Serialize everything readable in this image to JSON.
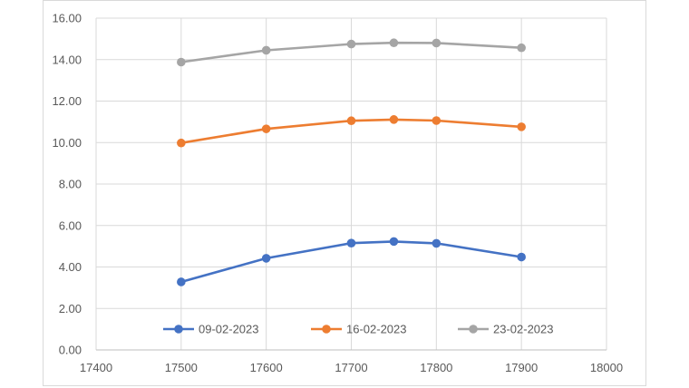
{
  "chart_data": {
    "type": "line",
    "title": "",
    "xlabel": "",
    "ylabel": "",
    "xlim": [
      17400,
      18000
    ],
    "ylim": [
      0,
      16
    ],
    "x_ticks": [
      17400,
      17500,
      17600,
      17700,
      17800,
      17900,
      18000
    ],
    "x_tick_labels": [
      "17400",
      "17500",
      "17600",
      "17700",
      "17800",
      "17900",
      "18000"
    ],
    "y_ticks": [
      0,
      2,
      4,
      6,
      8,
      10,
      12,
      14,
      16
    ],
    "y_tick_labels": [
      "0.00",
      "2.00",
      "4.00",
      "6.00",
      "8.00",
      "10.00",
      "12.00",
      "14.00",
      "16.00"
    ],
    "grid": "vertical and horizontal",
    "legend_position": "bottom (inside plot)",
    "series": [
      {
        "name": "09-02-2023",
        "color": "#4472c4",
        "x": [
          17500,
          17600,
          17700,
          17750,
          17800,
          17900
        ],
        "values": [
          3.28,
          4.42,
          5.15,
          5.23,
          5.14,
          4.48
        ]
      },
      {
        "name": "16-02-2023",
        "color": "#ed7d31",
        "x": [
          17500,
          17600,
          17700,
          17750,
          17800,
          17900
        ],
        "values": [
          9.98,
          10.66,
          11.05,
          11.11,
          11.06,
          10.76
        ]
      },
      {
        "name": "23-02-2023",
        "color": "#a5a5a5",
        "x": [
          17500,
          17600,
          17700,
          17750,
          17800,
          17900
        ],
        "values": [
          13.88,
          14.45,
          14.75,
          14.81,
          14.8,
          14.57
        ]
      }
    ]
  }
}
